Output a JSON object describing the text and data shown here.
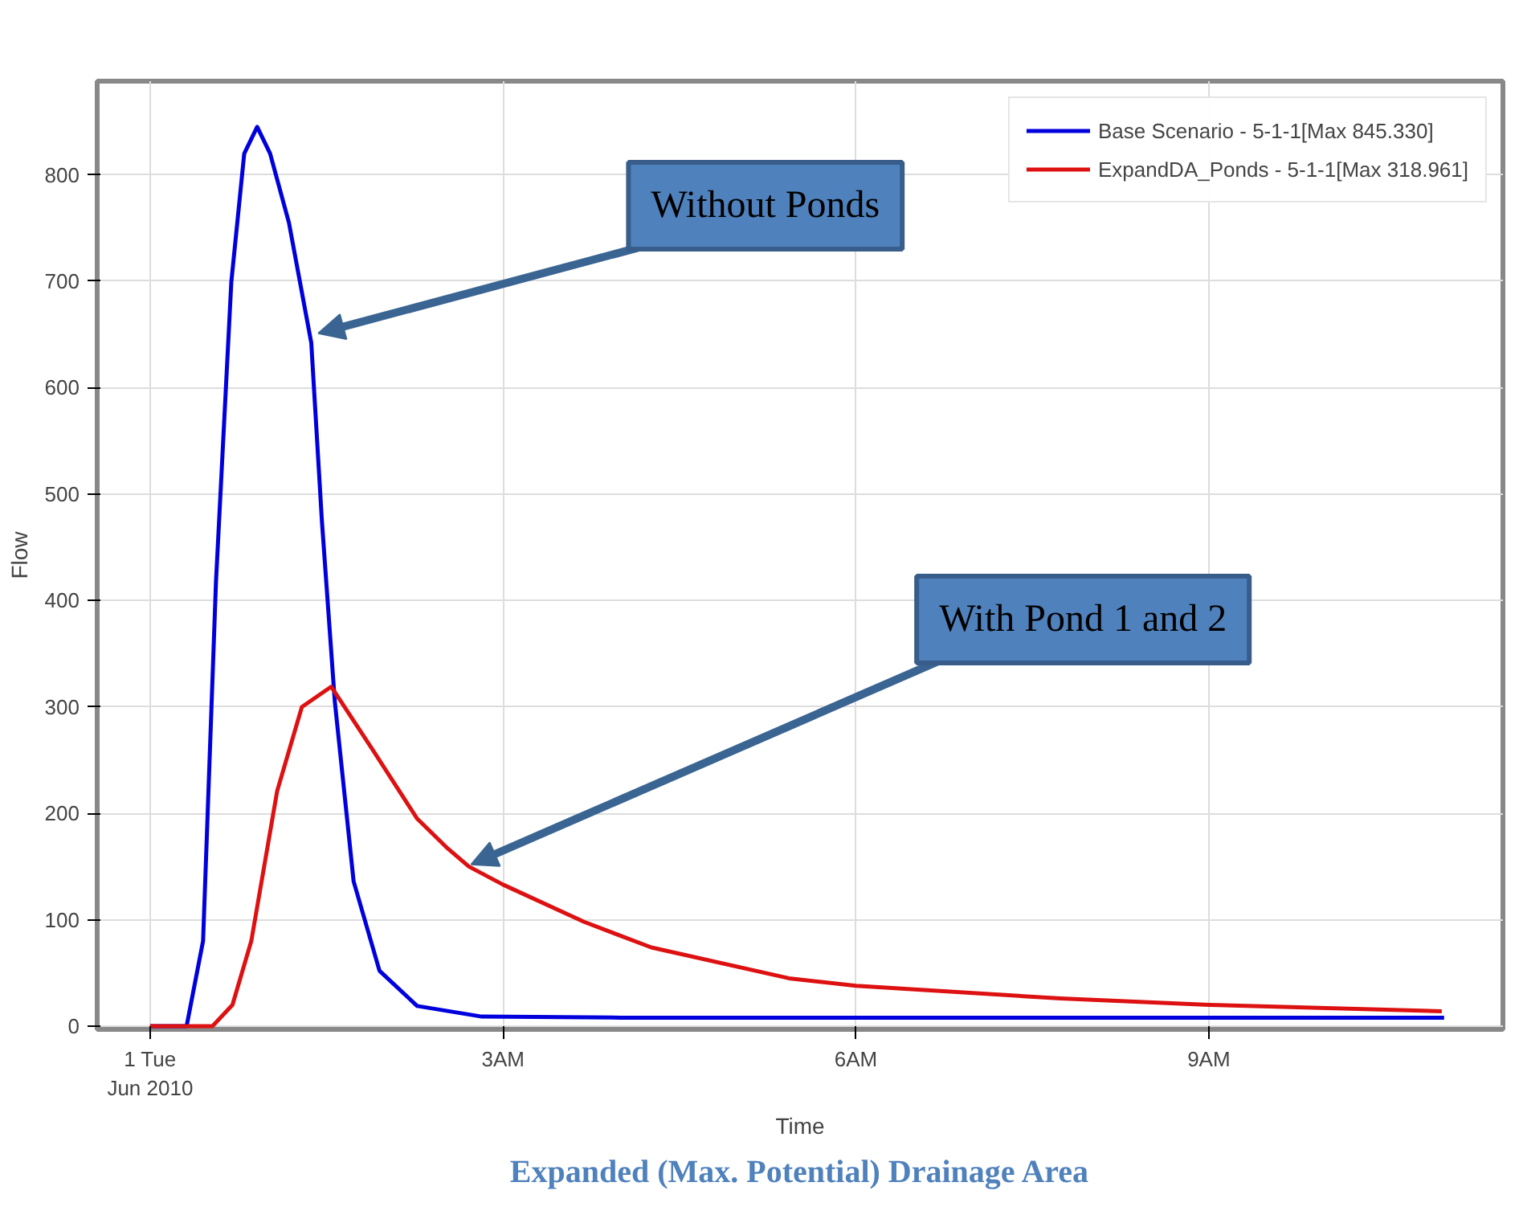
{
  "chart_data": {
    "type": "line",
    "title": "Expanded (Max. Potential) Drainage Area",
    "xlabel": "Time",
    "ylabel": "Flow",
    "xlim": [
      -0.45,
      11.5
    ],
    "ylim": [
      -3,
      888
    ],
    "xticks": [
      {
        "value": 0,
        "label": "1 Tue\nJun 2010"
      },
      {
        "value": 3,
        "label": "3AM"
      },
      {
        "value": 6,
        "label": "6AM"
      },
      {
        "value": 9,
        "label": "9AM"
      }
    ],
    "yticks": [
      0,
      100,
      200,
      300,
      400,
      500,
      600,
      700,
      800
    ],
    "grid": true,
    "legend": "top right",
    "marker": "none",
    "line_style": "solid",
    "series": [
      {
        "name": "Base Scenario - 5-1-1[Max 845.330]",
        "color": "#0000dd",
        "x": [
          0,
          0.31,
          0.45,
          0.56,
          0.69,
          0.8,
          0.91,
          1.02,
          1.18,
          1.37,
          1.46,
          1.57,
          1.73,
          1.95,
          2.27,
          2.82,
          4,
          6,
          8,
          10,
          11
        ],
        "values": [
          0,
          0,
          80,
          418,
          699,
          820,
          845,
          820,
          755,
          642,
          475,
          305,
          136,
          52,
          19,
          9,
          8,
          8,
          8,
          8,
          8
        ]
      },
      {
        "name": "ExpandDA_Ponds - 5-1-1[Max 318.961]",
        "color": "#dd1111",
        "x": [
          0,
          0.53,
          0.7,
          0.86,
          1.08,
          1.29,
          1.54,
          1.89,
          2.27,
          2.52,
          2.71,
          3.0,
          3.69,
          4.26,
          5.43,
          6.0,
          7.74,
          9.0,
          10.98
        ],
        "values": [
          0,
          0,
          20,
          80,
          221,
          300,
          319,
          260,
          195,
          168,
          150,
          133,
          98,
          74,
          45,
          38,
          26,
          20,
          14
        ]
      }
    ],
    "annotations": [
      {
        "text": "Without Ponds",
        "x": 1.43,
        "y": 651
      },
      {
        "text": "With Pond 1 and 2",
        "x": 2.73,
        "y": 152
      }
    ]
  }
}
